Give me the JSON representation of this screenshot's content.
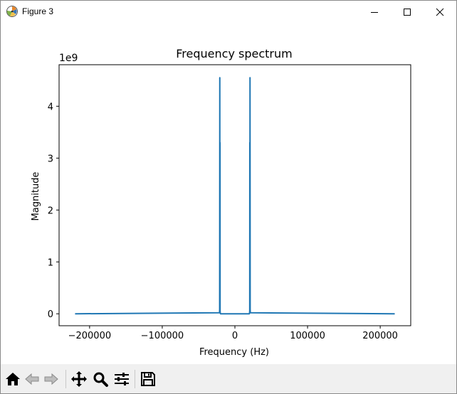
{
  "window": {
    "title": "Figure 3",
    "icons": {
      "app": "matplotlib-icon",
      "minimize": "minimize-icon",
      "maximize": "maximize-icon",
      "close": "close-icon"
    }
  },
  "toolbar": {
    "buttons": [
      {
        "name": "home-button",
        "icon": "home-icon"
      },
      {
        "name": "back-button",
        "icon": "back-arrow-icon"
      },
      {
        "name": "forward-button",
        "icon": "forward-arrow-icon"
      },
      {
        "name": "pan-button",
        "icon": "move-icon"
      },
      {
        "name": "zoom-button",
        "icon": "magnifier-icon"
      },
      {
        "name": "configure-subplots-button",
        "icon": "sliders-icon"
      },
      {
        "name": "save-button",
        "icon": "floppy-disk-icon"
      }
    ]
  },
  "chart_data": {
    "type": "line",
    "title": "Frequency spectrum",
    "xlabel": "Frequency (Hz)",
    "ylabel": "Magnitude",
    "offset_text": "1e9",
    "xlim": [
      -242000,
      242000
    ],
    "ylim": [
      -0.23,
      4.8
    ],
    "xticks": [
      -200000,
      -100000,
      0,
      100000,
      200000
    ],
    "xtick_labels": [
      "−200000",
      "−100000",
      "0",
      "100000",
      "200000"
    ],
    "yticks": [
      0,
      1,
      2,
      3,
      4
    ],
    "ytick_labels": [
      "0",
      "1",
      "2",
      "3",
      "4"
    ],
    "grid": false,
    "line_color": "#1f77b4",
    "series": [
      {
        "x": [
          -220000,
          -21200,
          -21000,
          -20800,
          -20700,
          -20500,
          -20400,
          -20200,
          -20000,
          -19800,
          19800,
          20000,
          20200,
          20400,
          20500,
          20700,
          20800,
          21000,
          21200,
          220000
        ],
        "y": [
          0,
          0.02,
          0.08,
          4.55,
          0.12,
          3.3,
          0.06,
          0.02,
          0.01,
          0,
          0,
          0.01,
          0.02,
          0.06,
          3.3,
          0.12,
          4.55,
          0.08,
          0.02,
          0
        ]
      }
    ]
  }
}
